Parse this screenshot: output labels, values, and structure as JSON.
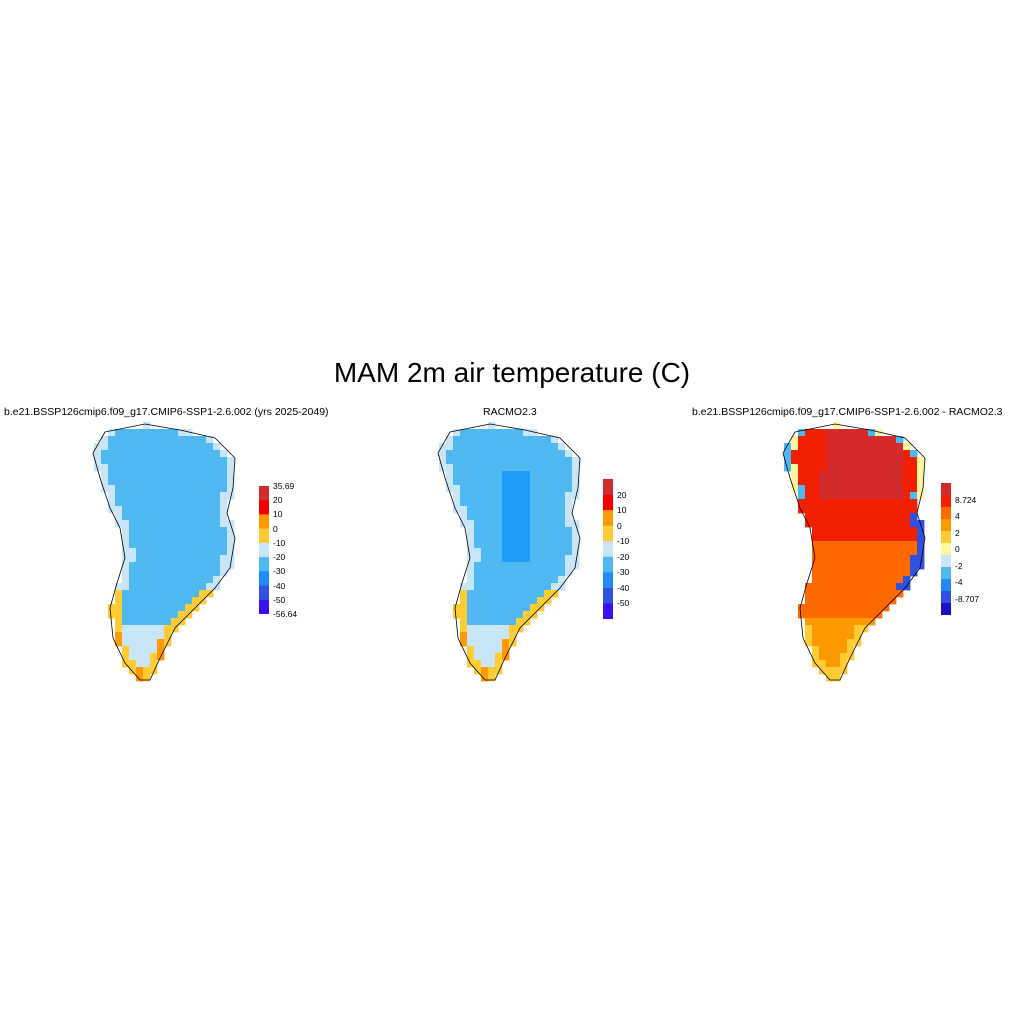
{
  "figure": {
    "title": "MAM 2m air temperature (C)"
  },
  "panels": [
    {
      "title": "b.e21.BSSP126cmip6.f09_g17.CMIP6-SSP1-2.6.002 (yrs 2025-2049)",
      "colorbar": {
        "labels": [
          "35.69",
          "20",
          "10",
          "0",
          "-10",
          "-20",
          "-30",
          "-40",
          "-50",
          "-56.64"
        ],
        "colors": [
          "#d32b2b",
          "#f20000",
          "#ff9900",
          "#ffcc33",
          "#c8e6f8",
          "#4fb8f0",
          "#1f8cf5",
          "#3050e0",
          "#3a10f0"
        ]
      }
    },
    {
      "title": "RACMO2.3",
      "colorbar": {
        "labels": [
          "20",
          "10",
          "0",
          "-10",
          "-20",
          "-30",
          "-40",
          "-50"
        ],
        "colors": [
          "#d32b2b",
          "#f20000",
          "#ff9900",
          "#ffcc33",
          "#c8e6f8",
          "#4fb8f0",
          "#1f8cf5",
          "#3050e0",
          "#3a10f0"
        ]
      }
    },
    {
      "title": "b.e21.BSSP126cmip6.f09_g17.CMIP6-SSP1-2.6.002 - RACMO2.3",
      "colorbar": {
        "labels": [
          "8.724",
          "4",
          "2",
          "0",
          "-2",
          "-4",
          "-8.707"
        ],
        "colors": [
          "#d32b2b",
          "#f22000",
          "#ff6a00",
          "#ff9900",
          "#ffcc33",
          "#fff6a0",
          "#c8e6f8",
          "#4fb8f0",
          "#1f8cf5",
          "#3050e0",
          "#1a10c8"
        ]
      }
    }
  ]
}
